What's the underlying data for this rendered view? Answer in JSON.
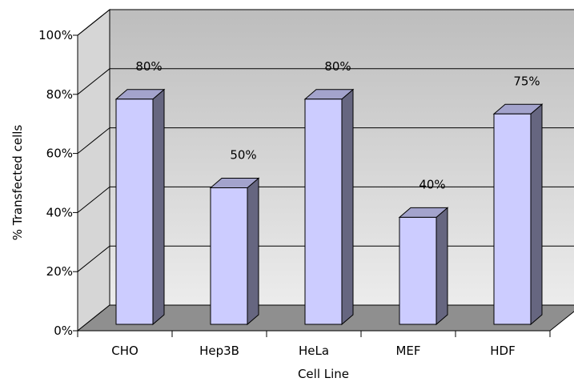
{
  "chart_data": {
    "type": "bar",
    "title": "",
    "xlabel": "Cell Line",
    "ylabel": "% Transfected cells",
    "categories": [
      "CHO",
      "Hep3B",
      "HeLa",
      "MEF",
      "HDF"
    ],
    "values": [
      0.8,
      0.5,
      0.8,
      0.4,
      0.75
    ],
    "data_labels": [
      "80%",
      "50%",
      "80%",
      "40%",
      "75%"
    ],
    "ylim": [
      0,
      1
    ],
    "yticks": [
      0,
      0.2,
      0.4,
      0.6,
      0.8,
      1.0
    ],
    "ytick_labels": [
      "0%",
      "20%",
      "40%",
      "60%",
      "80%",
      "100%"
    ],
    "grid": true,
    "three_d": true,
    "colors": {
      "bar_front": "#ccccff",
      "bar_side": "#666680",
      "bar_top": "#a3a3cc",
      "back_wall_top": "#bdbdbd",
      "back_wall_bottom": "#ececec",
      "side_wall": "#d6d6d6",
      "floor": "#8f8f8f"
    }
  }
}
